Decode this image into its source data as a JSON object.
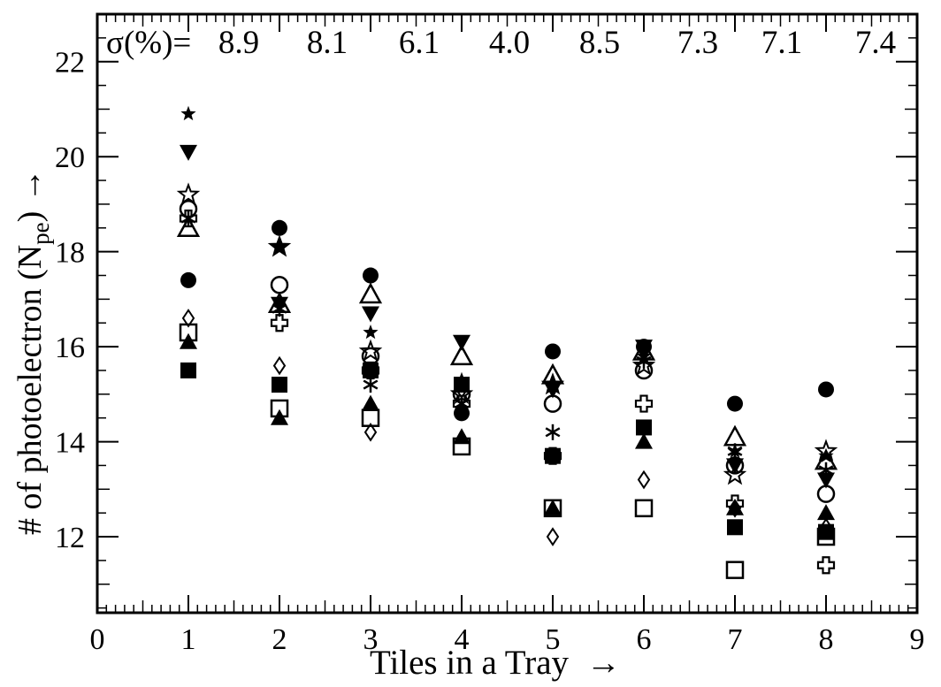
{
  "chart_data": {
    "type": "scatter",
    "xlabel": "Tiles in a Tray",
    "xlabel_arrow": "→",
    "ylabel_main": "# of photoelectron (N",
    "ylabel_sub": "pe",
    "ylabel_tail": ")",
    "ylabel_arrow": "→",
    "xlim": [
      0,
      9
    ],
    "ylim": [
      10.4,
      23
    ],
    "x_ticks": [
      0,
      1,
      2,
      3,
      4,
      5,
      6,
      7,
      8,
      9
    ],
    "x_tick_labels": [
      "0",
      "1",
      "2",
      "3",
      "4",
      "5",
      "6",
      "7",
      "8",
      "9"
    ],
    "y_ticks": [
      12,
      14,
      16,
      18,
      20,
      22
    ],
    "y_tick_labels": [
      "12",
      "14",
      "16",
      "18",
      "20",
      "22"
    ],
    "sigma_prefix": "σ(%)=",
    "sigma_values": [
      "8.9",
      "8.1",
      "6.1",
      "4.0",
      "8.5",
      "7.3",
      "7.1",
      "7.4"
    ],
    "grid": false,
    "series": [
      {
        "marker": "filled-star",
        "x": [
          1,
          2,
          3,
          4,
          5,
          6,
          7,
          8
        ],
        "y": [
          20.9,
          18.1,
          16.3,
          15.3,
          15.2,
          15.8,
          13.8,
          13.7
        ]
      },
      {
        "marker": "filled-inverted-triangle",
        "x": [
          1,
          2,
          3,
          4,
          5,
          6,
          7,
          8
        ],
        "y": [
          20.1,
          16.9,
          16.7,
          16.1,
          15.1,
          16.0,
          13.5,
          13.2
        ]
      },
      {
        "marker": "open-star",
        "x": [
          1,
          2,
          3,
          4,
          5,
          6,
          7,
          8
        ],
        "y": [
          19.2,
          18.1,
          15.9,
          15.0,
          15.2,
          15.6,
          13.3,
          13.8
        ]
      },
      {
        "marker": "open-circle",
        "x": [
          1,
          2,
          3,
          4,
          5,
          6,
          7,
          8
        ],
        "y": [
          18.9,
          17.3,
          15.8,
          15.0,
          14.8,
          15.5,
          13.5,
          12.9
        ]
      },
      {
        "marker": "filled-circle",
        "x": [
          1,
          2,
          3,
          4,
          5,
          6,
          7,
          8
        ],
        "y": [
          17.4,
          18.5,
          17.5,
          14.6,
          15.9,
          16.0,
          14.8,
          15.1
        ]
      },
      {
        "marker": "open-triangle",
        "x": [
          1,
          2,
          3,
          4,
          5,
          6,
          7,
          8
        ],
        "y": [
          18.5,
          16.9,
          17.1,
          15.8,
          15.4,
          15.9,
          14.1,
          13.6
        ]
      },
      {
        "marker": "asterisk",
        "x": [
          1,
          2,
          3,
          4,
          5,
          6,
          7,
          8
        ],
        "y": [
          18.7,
          16.8,
          15.2,
          14.8,
          14.2,
          15.7,
          13.8,
          13.4
        ]
      },
      {
        "marker": "open-diamond",
        "x": [
          1,
          2,
          3,
          4,
          5,
          6,
          7,
          8
        ],
        "y": [
          16.6,
          15.6,
          14.2,
          15.1,
          12.0,
          13.2,
          12.6,
          12.2
        ]
      },
      {
        "marker": "open-cross",
        "x": [
          1,
          2,
          3,
          4,
          5,
          6,
          7,
          8
        ],
        "y": [
          18.7,
          16.5,
          15.5,
          14.8,
          13.7,
          14.8,
          12.7,
          11.4
        ]
      },
      {
        "marker": "open-square",
        "x": [
          1,
          2,
          3,
          4,
          5,
          6,
          7,
          8
        ],
        "y": [
          16.3,
          14.7,
          14.5,
          13.9,
          12.6,
          12.6,
          11.3,
          12.0
        ]
      },
      {
        "marker": "filled-square",
        "x": [
          1,
          2,
          3,
          4,
          5,
          6,
          7,
          8
        ],
        "y": [
          15.5,
          15.2,
          15.5,
          15.2,
          13.7,
          14.3,
          12.2,
          12.1
        ]
      },
      {
        "marker": "filled-triangle",
        "x": [
          1,
          2,
          3,
          4,
          5,
          6,
          7,
          8
        ],
        "y": [
          16.1,
          14.5,
          14.8,
          14.1,
          12.6,
          14.0,
          12.6,
          12.5
        ]
      }
    ]
  }
}
